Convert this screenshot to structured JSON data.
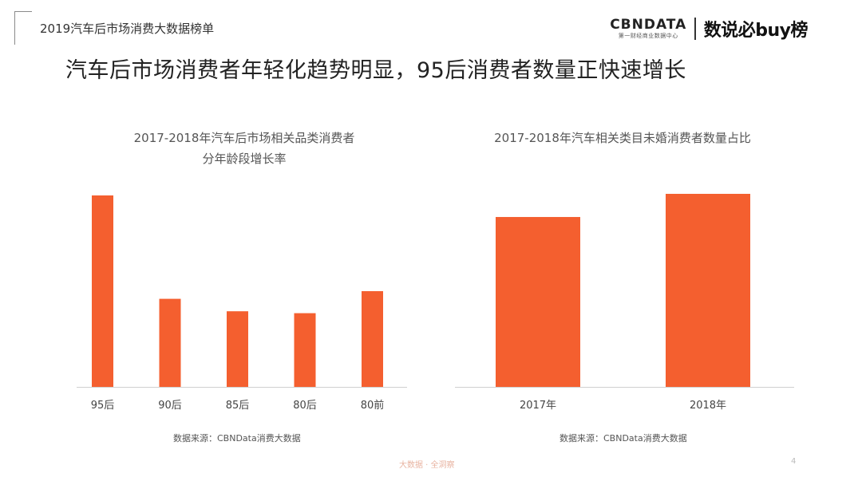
{
  "header": {
    "report_tag": "2019汽车后市场消费大数据榜单",
    "brand_cbn": "CBNDATA",
    "brand_cbn_sub": "第一财经商业数据中心",
    "brand_buy": "数说必buy榜"
  },
  "headline": "汽车后市场消费者年轻化趋势明显，95后消费者数量正快速增长",
  "chart_data": [
    {
      "type": "bar",
      "title_line1": "2017-2018年汽车后市场相关品类消费者",
      "title_line2": "分年龄段增长率",
      "categories": [
        "95后",
        "90后",
        "85后",
        "80后",
        "80前"
      ],
      "values": [
        100,
        46,
        39.5,
        38.5,
        50
      ],
      "color": "#f45f2f",
      "source": "数据来源：CBNData消费大数据"
    },
    {
      "type": "bar",
      "title": "2017-2018年汽车相关类目未婚消费者数量占比",
      "categories": [
        "2017年",
        "2018年"
      ],
      "values": [
        88,
        100
      ],
      "color": "#f45f2f",
      "source": "数据来源：CBNData消费大数据"
    }
  ],
  "footer": {
    "watermark": "大数据 · 全洞察",
    "page_number": "4"
  }
}
